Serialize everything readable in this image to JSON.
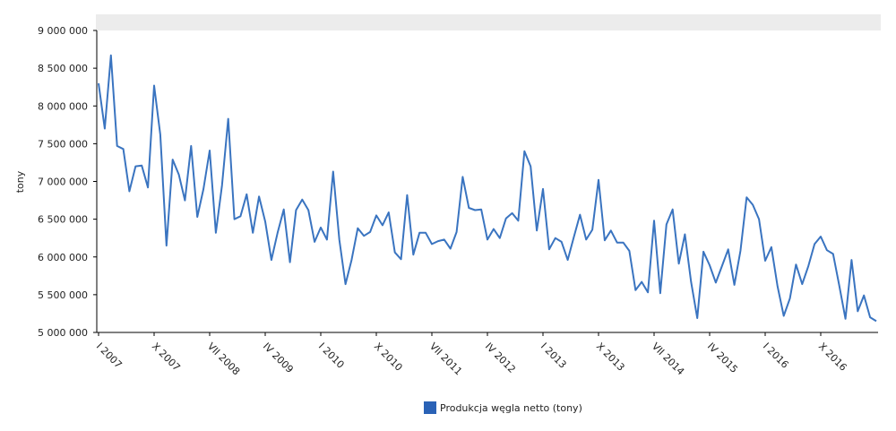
{
  "colors": {
    "series": "#3a74c0",
    "legend_swatch": "#2a62b6",
    "header_band": "#ececec",
    "axis": "#000000"
  },
  "legend": {
    "label": "Produkcja węgla netto (tony)"
  },
  "chart_data": {
    "type": "line",
    "title": "",
    "xlabel": "",
    "ylabel": "tony",
    "ylim": [
      5000000,
      9000000
    ],
    "yticks": [
      5000000,
      5500000,
      6000000,
      6500000,
      7000000,
      7500000,
      8000000,
      8500000,
      9000000
    ],
    "ytick_labels": [
      "5 000 000",
      "5 500 000",
      "6 000 000",
      "6 500 000",
      "7 000 000",
      "7 500 000",
      "8 000 000",
      "8 500 000",
      "9 000 000"
    ],
    "xticks": [
      {
        "index": 0,
        "label": "I 2007"
      },
      {
        "index": 9,
        "label": "X 2007"
      },
      {
        "index": 18,
        "label": "VII 2008"
      },
      {
        "index": 27,
        "label": "IV 2009"
      },
      {
        "index": 36,
        "label": "I 2010"
      },
      {
        "index": 45,
        "label": "X 2010"
      },
      {
        "index": 54,
        "label": "VII 2011"
      },
      {
        "index": 63,
        "label": "IV 2012"
      },
      {
        "index": 72,
        "label": "I 2013"
      },
      {
        "index": 81,
        "label": "X 2013"
      },
      {
        "index": 90,
        "label": "VII 2014"
      },
      {
        "index": 99,
        "label": "IV 2015"
      },
      {
        "index": 108,
        "label": "I 2016"
      },
      {
        "index": 117,
        "label": "X 2016"
      }
    ],
    "series": [
      {
        "name": "Produkcja węgla netto (tony)",
        "values": [
          8300000,
          7700000,
          8670000,
          7470000,
          7430000,
          6870000,
          7200000,
          7210000,
          6920000,
          8270000,
          7620000,
          6150000,
          7290000,
          7090000,
          6750000,
          7470000,
          6530000,
          6900000,
          7410000,
          6320000,
          6950000,
          7830000,
          6500000,
          6540000,
          6830000,
          6320000,
          6800000,
          6470000,
          5960000,
          6320000,
          6630000,
          5930000,
          6620000,
          6760000,
          6620000,
          6200000,
          6390000,
          6230000,
          7130000,
          6230000,
          5640000,
          5960000,
          6380000,
          6280000,
          6330000,
          6550000,
          6420000,
          6590000,
          6060000,
          5970000,
          6820000,
          6030000,
          6320000,
          6320000,
          6170000,
          6210000,
          6230000,
          6110000,
          6330000,
          7060000,
          6650000,
          6620000,
          6630000,
          6230000,
          6370000,
          6250000,
          6510000,
          6580000,
          6480000,
          7400000,
          7200000,
          6350000,
          6900000,
          6100000,
          6250000,
          6200000,
          5960000,
          6260000,
          6560000,
          6230000,
          6360000,
          7020000,
          6220000,
          6350000,
          6190000,
          6190000,
          6080000,
          5560000,
          5670000,
          5530000,
          6480000,
          5520000,
          6430000,
          6630000,
          5910000,
          6300000,
          5670000,
          5190000,
          6070000,
          5890000,
          5660000,
          5880000,
          6100000,
          5630000,
          6080000,
          6790000,
          6690000,
          6500000,
          5950000,
          6130000,
          5610000,
          5220000,
          5450000,
          5900000,
          5640000,
          5880000,
          6170000,
          6270000,
          6090000,
          6040000,
          5620000,
          5180000,
          5960000,
          5280000,
          5490000,
          5200000,
          5150000
        ]
      }
    ]
  }
}
